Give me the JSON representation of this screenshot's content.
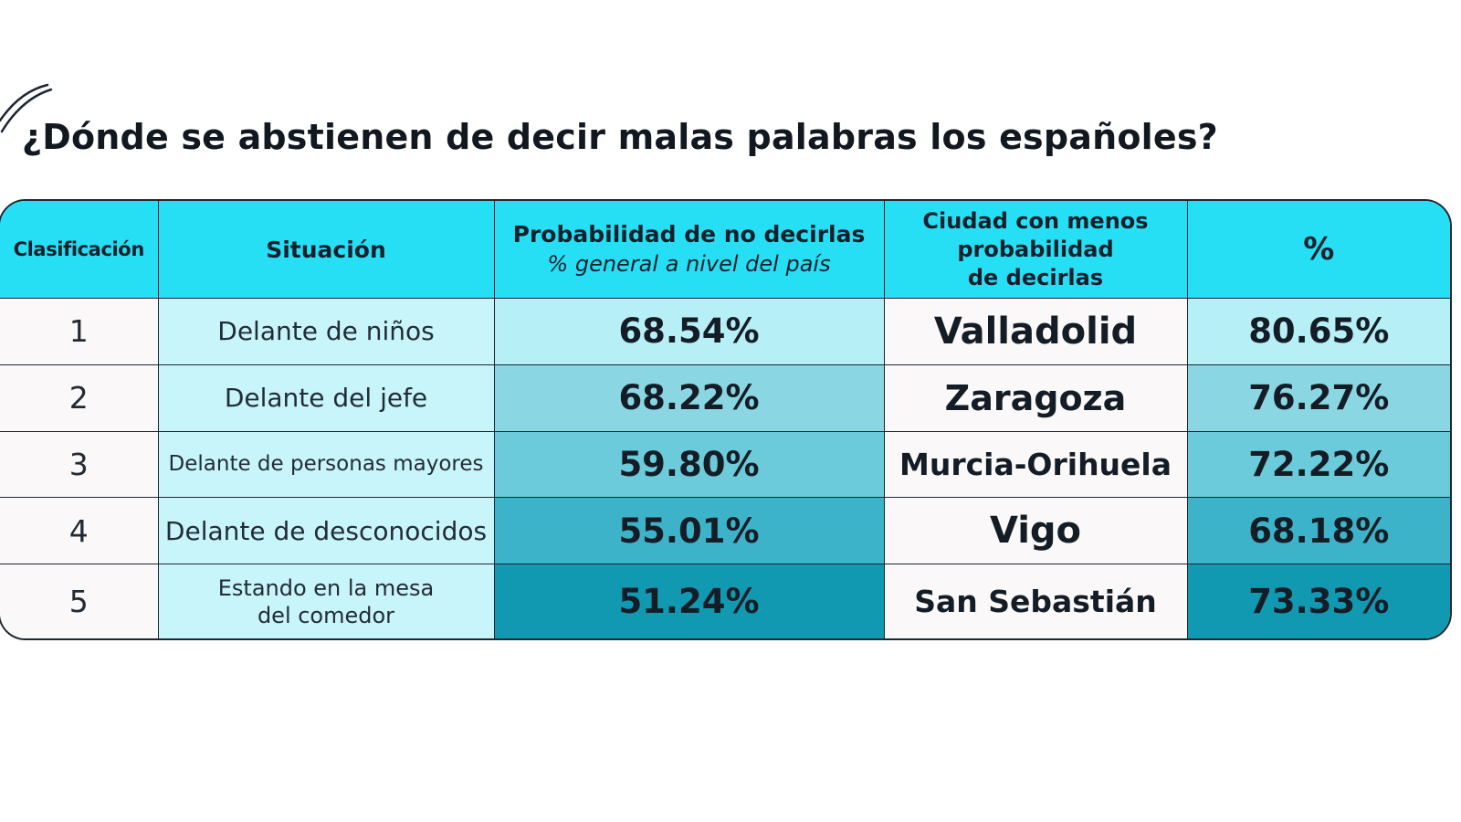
{
  "title": "¿Dónde se abstienen de decir malas palabras los españoles?",
  "colors": {
    "header": "#27dff5",
    "situation_cell": "#c8f5fa",
    "plain_cell": "#faf8f8",
    "border": "#1c2733"
  },
  "chart_data": {
    "type": "table",
    "title": "¿Dónde se abstienen de decir malas palabras los españoles?",
    "columns": {
      "rank": "Clasificación",
      "situation": "Situación",
      "probability": "Probabilidad de no decirlas",
      "probability_sub": "% general a nivel del país",
      "city_line1": "Ciudad con menos",
      "city_line2": "probabilidad",
      "city_line3": "de decirlas",
      "pct": "%"
    },
    "rows": [
      {
        "rank": "1",
        "situation": [
          "Delante de niños"
        ],
        "probability": "68.54%",
        "city": "Valladolid",
        "pct": "80.65%",
        "prob_color": "#b7eff6",
        "pct_color": "#b7eff6"
      },
      {
        "rank": "2",
        "situation": [
          "Delante del jefe"
        ],
        "probability": "68.22%",
        "city": "Zaragoza",
        "pct": "76.27%",
        "prob_color": "#8ad7e3",
        "pct_color": "#8ad7e3"
      },
      {
        "rank": "3",
        "situation": [
          "Delante de personas mayores"
        ],
        "probability": "59.80%",
        "city": "Murcia-Orihuela",
        "pct": "72.22%",
        "prob_color": "#6ccbda",
        "pct_color": "#6ccbda"
      },
      {
        "rank": "4",
        "situation": [
          "Delante de desconocidos"
        ],
        "probability": "55.01%",
        "city": "Vigo",
        "pct": "68.18%",
        "prob_color": "#3db3c9",
        "pct_color": "#3db3c9"
      },
      {
        "rank": "5",
        "situation": [
          "Estando en la mesa",
          "del comedor"
        ],
        "probability": "51.24%",
        "city": "San Sebastián",
        "pct": "73.33%",
        "prob_color": "#1199b2",
        "pct_color": "#1199b2"
      }
    ]
  }
}
